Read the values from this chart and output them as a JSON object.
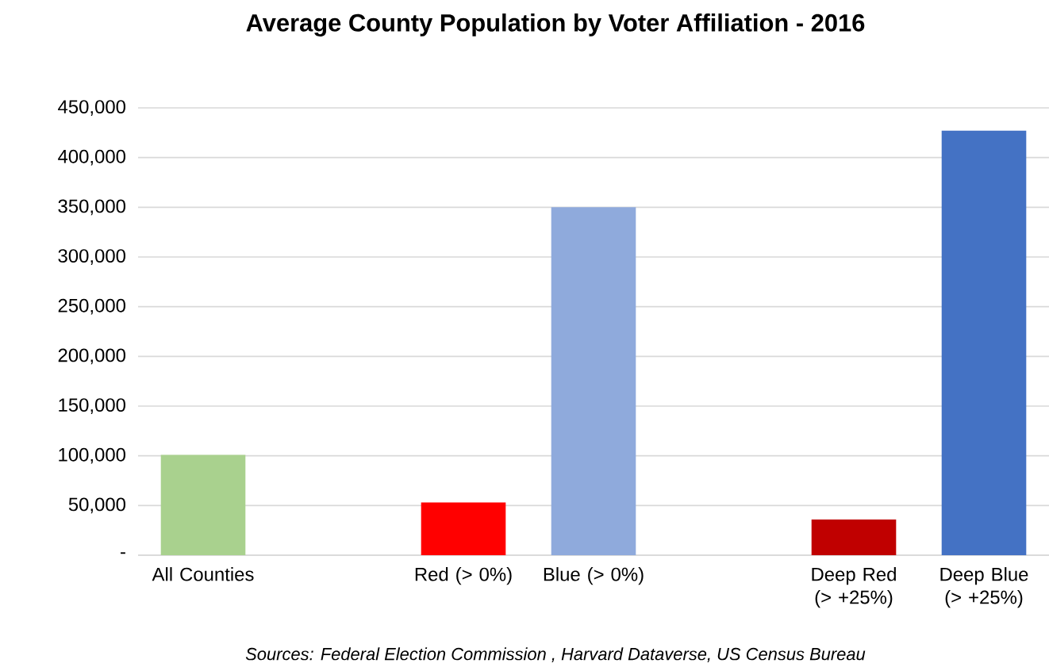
{
  "chart_data": {
    "type": "bar",
    "title": "Average County Population by Voter Affiliation - 2016",
    "categories": [
      "All Counties",
      null,
      "Red (> 0%)",
      "Blue (> 0%)",
      null,
      "Deep Red (> +25%)",
      "Deep Blue (> +25%)"
    ],
    "values": [
      101000,
      null,
      53000,
      350000,
      null,
      36000,
      427000
    ],
    "colors": [
      "#a9d18e",
      null,
      "#ff0000",
      "#8faadc",
      null,
      "#c00000",
      "#4472c4"
    ],
    "ylim": [
      0,
      450000
    ],
    "yticks": [
      {
        "value": 0,
        "label": "-"
      },
      {
        "value": 50000,
        "label": "50,000"
      },
      {
        "value": 100000,
        "label": "100,000"
      },
      {
        "value": 150000,
        "label": "150,000"
      },
      {
        "value": 200000,
        "label": "200,000"
      },
      {
        "value": 250000,
        "label": "250,000"
      },
      {
        "value": 300000,
        "label": "300,000"
      },
      {
        "value": 350000,
        "label": "350,000"
      },
      {
        "value": 400000,
        "label": "400,000"
      },
      {
        "value": 450000,
        "label": "450,000"
      }
    ],
    "grid": "y",
    "annotations": [
      "Sources: Federal Election Commission , Harvard Dataverse, US Census Bureau"
    ]
  }
}
